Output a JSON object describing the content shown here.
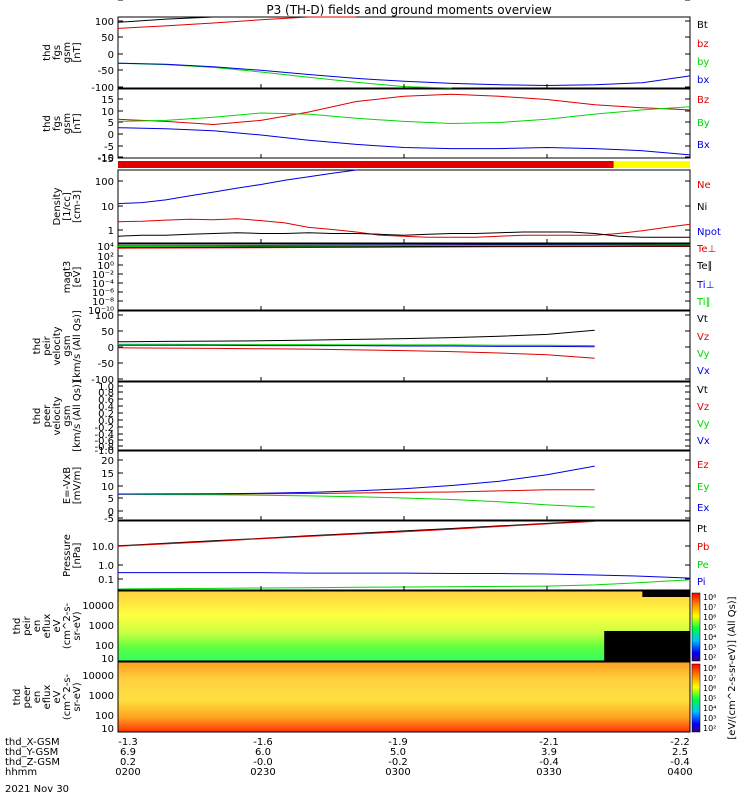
{
  "figure": {
    "title": "P3 (TH-D) fields and ground moments overview",
    "date": "2021 Nov 30"
  },
  "colors": {
    "black": "#000000",
    "red": "#e00000",
    "green": "#00d800",
    "blue": "#0000e0",
    "yellow": "#ffff00"
  },
  "ephemeris": {
    "labels": [
      "thd_X-GSM",
      "thd_Y-GSM",
      "thd_Z-GSM",
      "hhmm"
    ],
    "columns": [
      {
        "x": "-1.3",
        "y": "6.9",
        "z": "0.2",
        "t": "0200"
      },
      {
        "x": "-1.6",
        "y": "6.0",
        "z": "-0.0",
        "t": "0230"
      },
      {
        "x": "-1.9",
        "y": "5.0",
        "z": "-0.2",
        "t": "0300"
      },
      {
        "x": "-2.1",
        "y": "3.9",
        "z": "-0.4",
        "t": "0330"
      },
      {
        "x": "-2.2",
        "y": "2.5",
        "z": "-0.4",
        "t": "0400"
      }
    ]
  },
  "panels": [
    {
      "ylabel": [
        "thd",
        "fgs",
        "gsm",
        "[nT]"
      ],
      "ticks": [
        "100",
        "50",
        "0",
        "-50",
        "-100"
      ],
      "legend": [
        {
          "t": "Bt",
          "c": "black"
        },
        {
          "t": "bz",
          "c": "red"
        },
        {
          "t": "by",
          "c": "green"
        },
        {
          "t": "bx",
          "c": "blue"
        }
      ]
    },
    {
      "ylabel": [
        "thd",
        "fgs",
        "gsm",
        "[nT]"
      ],
      "ticks": [
        "15",
        "10",
        "5",
        "0",
        "-5",
        "-10",
        "-15"
      ],
      "legend": [
        {
          "t": "Bz",
          "c": "red"
        },
        {
          "t": "By",
          "c": "green"
        },
        {
          "t": "Bx",
          "c": "blue"
        }
      ]
    },
    {
      "ylabel": [
        "Density",
        "[1/cc]",
        "[cm-3]"
      ],
      "ticks": [
        "100",
        "10",
        "1"
      ],
      "legend": [
        {
          "t": "Ne",
          "c": "red"
        },
        {
          "t": "Ni",
          "c": "black"
        },
        {
          "t": "Npot",
          "c": "blue"
        }
      ]
    },
    {
      "ylabel": [
        "magt3",
        "[eV]"
      ],
      "ticks": [
        "10⁴",
        "10²",
        "10⁰",
        "10⁻²",
        "10⁻⁴",
        "10⁻⁶",
        "10⁻⁸",
        "10⁻¹⁰"
      ],
      "legend": [
        {
          "t": "Te⊥",
          "c": "red"
        },
        {
          "t": "Te∥",
          "c": "black"
        },
        {
          "t": "Ti⊥",
          "c": "blue"
        },
        {
          "t": "Ti∥",
          "c": "green"
        }
      ]
    },
    {
      "ylabel": [
        "thd",
        "peir",
        "velocity",
        "gsm",
        "[km/s (All Qs)]"
      ],
      "ticks": [
        "100",
        "50",
        "0",
        "-50",
        "-100"
      ],
      "legend": [
        {
          "t": "Vt",
          "c": "black"
        },
        {
          "t": "Vz",
          "c": "red"
        },
        {
          "t": "Vy",
          "c": "green"
        },
        {
          "t": "Vx",
          "c": "blue"
        }
      ]
    },
    {
      "ylabel": [
        "thd",
        "peer",
        "velocity",
        "gsm",
        "[km/s (All Qs)]"
      ],
      "ticks": [
        "1.0",
        "0.8",
        "0.6",
        "0.4",
        "0.2",
        "0.0",
        "-0.2",
        "-0.4",
        "-0.6",
        "-0.8",
        "-1.0"
      ],
      "legend": [
        {
          "t": "Vt",
          "c": "black"
        },
        {
          "t": "Vz",
          "c": "red"
        },
        {
          "t": "Vy",
          "c": "green"
        },
        {
          "t": "Vx",
          "c": "blue"
        }
      ]
    },
    {
      "ylabel": [
        "E=-VxB",
        "[mV/m]"
      ],
      "ticks": [
        "20",
        "15",
        "10",
        "5",
        "0",
        "-5",
        "-10"
      ],
      "legend": [
        {
          "t": "Ez",
          "c": "red"
        },
        {
          "t": "Ey",
          "c": "green"
        },
        {
          "t": "Ex",
          "c": "blue"
        }
      ]
    },
    {
      "ylabel": [
        "Pressure",
        "[nPa]"
      ],
      "ticks": [
        "10.0",
        "1.0",
        "0.1"
      ],
      "legend": [
        {
          "t": "Pt",
          "c": "black"
        },
        {
          "t": "Pb",
          "c": "red"
        },
        {
          "t": "Pe",
          "c": "green"
        },
        {
          "t": "Pi",
          "c": "blue"
        }
      ]
    },
    {
      "ylabel": [
        "thd",
        "peir",
        "en",
        "eflux",
        "eV",
        "(cm^2-s-",
        "sr-eV)"
      ],
      "ticks": [
        "10000",
        "1000",
        "100",
        "10"
      ],
      "legend": []
    },
    {
      "ylabel": [
        "thd",
        "peer",
        "en",
        "eflux",
        "eV",
        "(cm^2-s-",
        "sr-eV)"
      ],
      "ticks": [
        "10000",
        "1000",
        "100",
        "10"
      ],
      "legend": []
    }
  ],
  "colorbars": [
    {
      "ticks": [
        "10⁸",
        "10⁷",
        "10⁶",
        "10⁵",
        "10⁴",
        "10³",
        "10²"
      ]
    },
    {
      "ticks": [
        "10⁸",
        "10⁷",
        "10⁶",
        "10⁵",
        "10⁴",
        "10³",
        "10²"
      ]
    }
  ],
  "colorbar_label": "[eV/(cm^2-s-sr-eV)] (All Qs)]",
  "chart_data": {
    "type": "line",
    "time_range": [
      "0200",
      "0400"
    ],
    "x_tick_labels": [
      "0200",
      "0230",
      "0300",
      "0330",
      "0400"
    ],
    "panels": [
      {
        "name": "thd_fgs_gsm",
        "ylim": [
          -100,
          100
        ],
        "x": [
          0,
          10,
          20,
          30,
          40,
          50,
          60,
          70,
          80,
          90,
          100,
          110,
          120
        ],
        "series": [
          {
            "name": "Bt",
            "color": "black",
            "values": [
              85,
              94,
              103,
              112,
              null,
              null,
              null,
              null,
              null,
              null,
              null,
              null,
              null
            ]
          },
          {
            "name": "bz",
            "color": "red",
            "values": [
              68,
              75,
              83,
              92,
              101,
              110,
              null,
              null,
              null,
              null,
              null,
              null,
              null
            ]
          },
          {
            "name": "by",
            "color": "green",
            "values": [
              -30,
              -34,
              -42,
              -55,
              -70,
              -84,
              -96,
              -108,
              null,
              null,
              null,
              null,
              null
            ]
          },
          {
            "name": "bx",
            "color": "blue",
            "values": [
              -30,
              -33,
              -40,
              -50,
              -62,
              -73,
              -81,
              -87,
              -91,
              -93,
              -91,
              -85,
              -66
            ]
          }
        ]
      },
      {
        "name": "thd_fgs_gsm_zoom",
        "ylim": [
          -17,
          16
        ],
        "x": [
          0,
          10,
          20,
          30,
          40,
          50,
          60,
          70,
          80,
          90,
          100,
          110,
          120
        ],
        "series": [
          {
            "name": "Bz",
            "color": "red",
            "values": [
              1.5,
              0.5,
              -1.0,
              1.0,
              5.0,
              10.0,
              12.5,
              13.5,
              12.5,
              11.0,
              8.5,
              7.0,
              6.0
            ]
          },
          {
            "name": "By",
            "color": "green",
            "values": [
              0.5,
              1.0,
              2.5,
              4.5,
              4.0,
              2.0,
              0.5,
              -0.5,
              0.0,
              1.5,
              4.0,
              6.0,
              7.5
            ]
          },
          {
            "name": "Bx",
            "color": "blue",
            "values": [
              -2.5,
              -3.0,
              -4.0,
              -6.0,
              -8.5,
              -10.5,
              -12.0,
              -12.5,
              -12.5,
              -12.0,
              -12.5,
              -13.5,
              -15.5
            ]
          }
        ]
      },
      {
        "name": "density",
        "scale": "log",
        "ylim": [
          0.3,
          200
        ],
        "x": [
          0,
          5,
          10,
          15,
          20,
          25,
          30,
          35,
          40,
          45,
          50,
          55,
          60,
          65,
          70,
          75,
          80,
          85,
          90,
          95,
          100,
          105,
          110,
          115,
          120
        ],
        "series": [
          {
            "name": "Ne",
            "color": "red",
            "values": [
              2.0,
              2.1,
              2.3,
              2.5,
              2.4,
              2.6,
              2.2,
              1.8,
              1.2,
              1.0,
              0.8,
              0.6,
              0.55,
              0.5,
              0.5,
              0.5,
              0.55,
              0.6,
              0.6,
              0.6,
              0.6,
              0.7,
              0.9,
              1.2,
              1.6
            ]
          },
          {
            "name": "Ni",
            "color": "black",
            "values": [
              0.55,
              0.6,
              0.6,
              0.65,
              0.7,
              0.75,
              0.7,
              0.7,
              0.75,
              0.7,
              0.7,
              0.65,
              0.6,
              0.65,
              0.7,
              0.7,
              0.75,
              0.8,
              0.8,
              0.8,
              0.7,
              0.55,
              0.5,
              0.5,
              0.5
            ]
          },
          {
            "name": "Npot",
            "color": "blue",
            "values": [
              10,
              11,
              14,
              20,
              28,
              40,
              55,
              80,
              110,
              150,
              200,
              null,
              null,
              null,
              null,
              null,
              null,
              null,
              null,
              null,
              null,
              null,
              null,
              null,
              null
            ]
          }
        ]
      },
      {
        "name": "magt3",
        "scale": "log",
        "ylim": [
          1e-10,
          10000.0
        ],
        "x": [
          0,
          20,
          40,
          60,
          80,
          100,
          120
        ],
        "series": [
          {
            "name": "Te⊥",
            "color": "red",
            "values": [
              1300,
              1500,
              1800,
              2200,
              2500,
              2800,
              3000
            ]
          },
          {
            "name": "Te∥",
            "color": "black",
            "values": [
              2000,
              2200,
              2500,
              3000,
              3300,
              3500,
              3800
            ]
          },
          {
            "name": "Ti⊥",
            "color": "blue",
            "values": [
              4000,
              4500,
              5000,
              5500,
              6000,
              6500,
              7000
            ]
          },
          {
            "name": "Ti∥",
            "color": "green",
            "values": [
              3000,
              3500,
              4000,
              4500,
              5000,
              5500,
              6000
            ]
          }
        ]
      },
      {
        "name": "peir_velocity",
        "ylim": [
          -100,
          100
        ],
        "x": [
          0,
          10,
          20,
          30,
          40,
          50,
          60,
          70,
          80,
          90,
          100
        ],
        "series": [
          {
            "name": "Vt",
            "color": "black",
            "values": [
              12,
              13,
              14,
              15,
              17,
              19,
              21,
              24,
              28,
              33,
              45
            ]
          },
          {
            "name": "Vz",
            "color": "red",
            "values": [
              -5,
              -6,
              -7,
              -8,
              -9,
              -11,
              -13,
              -16,
              -20,
              -25,
              -35
            ]
          },
          {
            "name": "Vy",
            "color": "green",
            "values": [
              5,
              5,
              4,
              4,
              4,
              3,
              3,
              3,
              2,
              2,
              1
            ]
          },
          {
            "name": "Vx",
            "color": "blue",
            "values": [
              2,
              2,
              2,
              1,
              1,
              1,
              0,
              0,
              -1,
              -1,
              -2
            ]
          }
        ]
      },
      {
        "name": "peer_velocity",
        "ylim": [
          -1,
          1
        ],
        "x": [],
        "series": []
      },
      {
        "name": "E_field",
        "ylim": [
          -12,
          20
        ],
        "x": [
          0,
          10,
          20,
          30,
          40,
          50,
          60,
          70,
          80,
          90,
          100
        ],
        "series": [
          {
            "name": "Ez",
            "color": "red",
            "values": [
              0,
              0,
              0,
              0.2,
              0.3,
              0.5,
              0.8,
              1,
              1.5,
              2,
              2
            ]
          },
          {
            "name": "Ey",
            "color": "green",
            "values": [
              0,
              -0.2,
              -0.3,
              -0.5,
              -0.8,
              -1.2,
              -1.8,
              -2.5,
              -3.5,
              -5,
              -6
            ]
          },
          {
            "name": "Ex",
            "color": "blue",
            "values": [
              0,
              0.1,
              0.2,
              0.4,
              0.8,
              1.5,
              2.5,
              4,
              6,
              9,
              13
            ]
          }
        ]
      },
      {
        "name": "pressure",
        "scale": "log",
        "ylim": [
          0.05,
          30
        ],
        "x": [
          0,
          10,
          20,
          30,
          40,
          50,
          60,
          70,
          80,
          90,
          100,
          110,
          120
        ],
        "series": [
          {
            "name": "Pt",
            "color": "black",
            "values": [
              3.0,
              3.8,
              4.8,
              6.0,
              7.6,
              9.5,
              12.0,
              15.0,
              19.0,
              24.0,
              30.0,
              null,
              null
            ]
          },
          {
            "name": "Pb",
            "color": "red",
            "values": [
              2.9,
              3.6,
              4.5,
              5.8,
              7.2,
              9.0,
              11.0,
              14.0,
              18.0,
              23.0,
              29.0,
              null,
              null
            ]
          },
          {
            "name": "Pe",
            "color": "green",
            "values": [
              0.055,
              0.057,
              0.058,
              0.06,
              0.062,
              0.064,
              0.066,
              0.068,
              0.07,
              0.072,
              0.08,
              0.1,
              0.13
            ]
          },
          {
            "name": "Pi",
            "color": "blue",
            "values": [
              0.25,
              0.25,
              0.25,
              0.25,
              0.24,
              0.24,
              0.24,
              0.23,
              0.23,
              0.22,
              0.2,
              0.18,
              0.15
            ]
          }
        ]
      },
      {
        "name": "peir_en_eflux",
        "type": "heatmap",
        "ylim": [
          5,
          25000
        ],
        "clim": [
          100,
          100000000
        ]
      },
      {
        "name": "peer_en_eflux",
        "type": "heatmap",
        "ylim": [
          5,
          25000
        ],
        "clim": [
          100,
          100000000
        ]
      }
    ]
  }
}
